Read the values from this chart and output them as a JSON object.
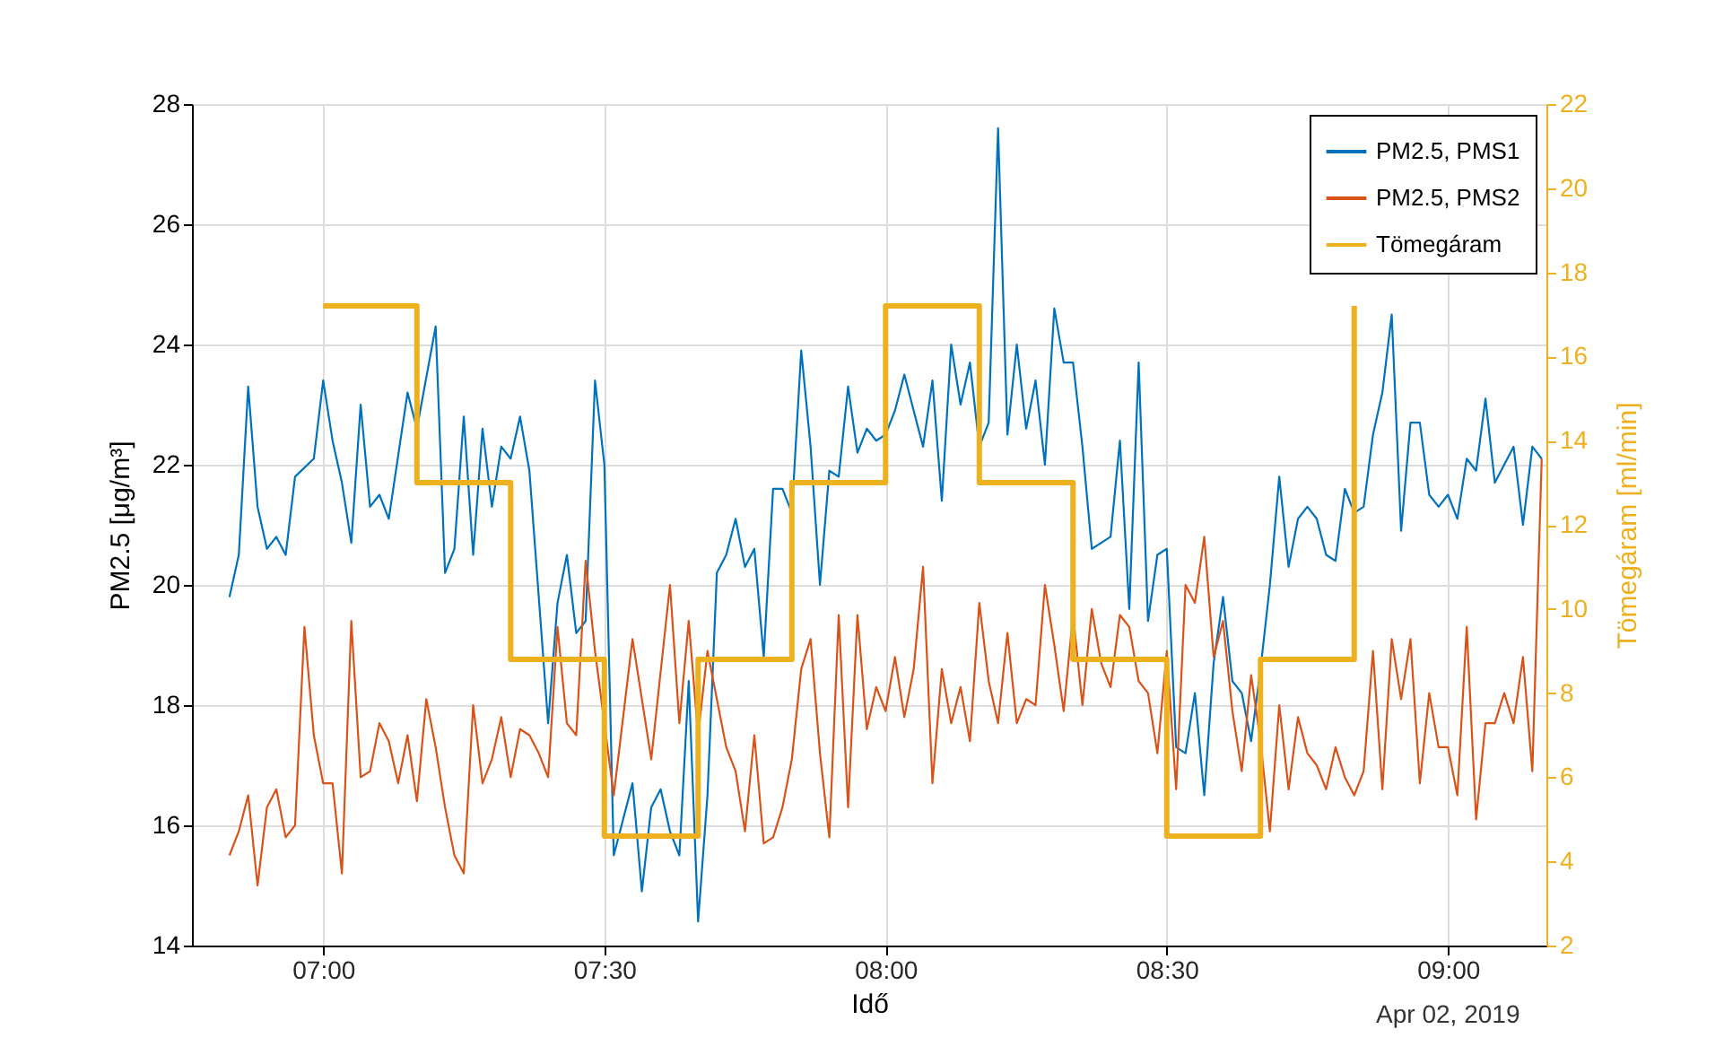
{
  "chart_data": {
    "type": "line",
    "xlabel": "Idő",
    "ylabel": "PM2.5 [μg/m³]",
    "y2label": "Tömegáram [ml/min]",
    "xlim": [
      "2019-04-02T06:46",
      "2019-04-02T09:10:30"
    ],
    "xticks": [
      {
        "value": "2019-04-02T07:00",
        "label": "07:00"
      },
      {
        "value": "2019-04-02T07:30",
        "label": "07:30"
      },
      {
        "value": "2019-04-02T08:00",
        "label": "08:00"
      },
      {
        "value": "2019-04-02T08:30",
        "label": "08:30"
      },
      {
        "value": "2019-04-02T09:00",
        "label": "09:00"
      }
    ],
    "ylim": [
      14,
      28
    ],
    "yticks": [
      14,
      16,
      18,
      20,
      22,
      24,
      26,
      28
    ],
    "y2lim": [
      2,
      22
    ],
    "y2ticks": [
      2,
      4,
      6,
      8,
      10,
      12,
      14,
      16,
      18,
      20,
      22
    ],
    "grid": true,
    "legend": "top right",
    "annotations": [
      "Apr 02, 2019"
    ],
    "series": [
      {
        "name": "PM2.5, PMS1",
        "color": "#0072bd",
        "x": [
          "2019-04-02T06:50",
          "2019-04-02T06:51",
          "2019-04-02T06:52",
          "2019-04-02T06:53",
          "2019-04-02T06:54",
          "2019-04-02T06:55",
          "2019-04-02T06:56",
          "2019-04-02T06:57",
          "2019-04-02T06:59",
          "2019-04-02T07:00",
          "2019-04-02T07:01",
          "2019-04-02T07:02",
          "2019-04-02T07:03",
          "2019-04-02T07:04",
          "2019-04-02T07:05",
          "2019-04-02T07:06",
          "2019-04-02T07:07",
          "2019-04-02T07:09",
          "2019-04-02T07:10",
          "2019-04-02T07:12",
          "2019-04-02T07:13",
          "2019-04-02T07:14",
          "2019-04-02T07:15",
          "2019-04-02T07:16",
          "2019-04-02T07:17",
          "2019-04-02T07:18",
          "2019-04-02T07:19",
          "2019-04-02T07:20",
          "2019-04-02T07:21",
          "2019-04-02T07:22",
          "2019-04-02T07:24",
          "2019-04-02T07:25",
          "2019-04-02T07:26",
          "2019-04-02T07:27",
          "2019-04-02T07:28",
          "2019-04-02T07:29",
          "2019-04-02T07:30",
          "2019-04-02T07:31",
          "2019-04-02T07:33",
          "2019-04-02T07:34",
          "2019-04-02T07:35",
          "2019-04-02T07:36",
          "2019-04-02T07:37",
          "2019-04-02T07:38",
          "2019-04-02T07:39",
          "2019-04-02T07:40",
          "2019-04-02T07:41",
          "2019-04-02T07:42",
          "2019-04-02T07:43",
          "2019-04-02T07:44",
          "2019-04-02T07:45",
          "2019-04-02T07:46",
          "2019-04-02T07:47",
          "2019-04-02T07:48",
          "2019-04-02T07:49",
          "2019-04-02T07:50",
          "2019-04-02T07:51",
          "2019-04-02T07:52",
          "2019-04-02T07:53",
          "2019-04-02T07:54",
          "2019-04-02T07:55",
          "2019-04-02T07:56",
          "2019-04-02T07:57",
          "2019-04-02T07:58",
          "2019-04-02T07:59",
          "2019-04-02T08:00",
          "2019-04-02T08:01",
          "2019-04-02T08:02",
          "2019-04-02T08:03",
          "2019-04-02T08:04",
          "2019-04-02T08:05",
          "2019-04-02T08:06",
          "2019-04-02T08:07",
          "2019-04-02T08:08",
          "2019-04-02T08:09",
          "2019-04-02T08:10",
          "2019-04-02T08:11",
          "2019-04-02T08:12",
          "2019-04-02T08:13",
          "2019-04-02T08:14",
          "2019-04-02T08:15",
          "2019-04-02T08:16",
          "2019-04-02T08:17",
          "2019-04-02T08:18",
          "2019-04-02T08:19",
          "2019-04-02T08:20",
          "2019-04-02T08:21",
          "2019-04-02T08:22",
          "2019-04-02T08:23",
          "2019-04-02T08:24",
          "2019-04-02T08:25",
          "2019-04-02T08:26",
          "2019-04-02T08:27",
          "2019-04-02T08:28",
          "2019-04-02T08:29",
          "2019-04-02T08:30",
          "2019-04-02T08:31",
          "2019-04-02T08:32",
          "2019-04-02T08:33",
          "2019-04-02T08:34",
          "2019-04-02T08:35",
          "2019-04-02T08:36",
          "2019-04-02T08:37",
          "2019-04-02T08:38",
          "2019-04-02T08:39",
          "2019-04-02T08:40",
          "2019-04-02T08:41",
          "2019-04-02T08:42",
          "2019-04-02T08:43",
          "2019-04-02T08:44",
          "2019-04-02T08:45",
          "2019-04-02T08:46",
          "2019-04-02T08:47",
          "2019-04-02T08:48",
          "2019-04-02T08:49",
          "2019-04-02T08:50",
          "2019-04-02T08:51",
          "2019-04-02T08:52",
          "2019-04-02T08:53",
          "2019-04-02T08:54",
          "2019-04-02T08:55",
          "2019-04-02T08:56",
          "2019-04-02T08:57",
          "2019-04-02T08:58",
          "2019-04-02T08:59",
          "2019-04-02T09:00",
          "2019-04-02T09:01",
          "2019-04-02T09:02",
          "2019-04-02T09:03",
          "2019-04-02T09:04",
          "2019-04-02T09:05",
          "2019-04-02T09:06",
          "2019-04-02T09:07",
          "2019-04-02T09:08",
          "2019-04-02T09:09",
          "2019-04-02T09:10"
        ],
        "values": [
          19.8,
          20.5,
          23.3,
          21.3,
          20.6,
          20.8,
          20.5,
          21.8,
          22.1,
          23.4,
          22.4,
          21.7,
          20.7,
          23.0,
          21.3,
          21.5,
          21.1,
          23.2,
          22.6,
          24.3,
          20.2,
          20.6,
          22.8,
          20.5,
          22.6,
          21.3,
          22.3,
          22.1,
          22.8,
          21.9,
          17.7,
          19.7,
          20.5,
          19.2,
          19.4,
          23.4,
          22.0,
          15.5,
          16.7,
          14.9,
          16.3,
          16.6,
          15.9,
          15.5,
          18.4,
          14.4,
          16.5,
          20.2,
          20.5,
          21.1,
          20.3,
          20.6,
          18.8,
          21.6,
          21.6,
          21.2,
          23.9,
          22.3,
          20.0,
          21.9,
          21.8,
          23.3,
          22.2,
          22.6,
          22.4,
          22.5,
          22.9,
          23.5,
          22.9,
          22.3,
          23.4,
          21.4,
          24.0,
          23.0,
          23.7,
          22.3,
          22.7,
          27.6,
          22.5,
          24.0,
          22.6,
          23.4,
          22.0,
          24.6,
          23.7,
          23.7,
          22.3,
          20.6,
          20.7,
          20.8,
          22.4,
          19.6,
          23.7,
          19.4,
          20.5,
          20.6,
          17.3,
          17.2,
          18.2,
          16.5,
          18.7,
          19.8,
          18.4,
          18.2,
          17.4,
          18.6,
          20.0,
          21.8,
          20.3,
          21.1,
          21.3,
          21.1,
          20.5,
          20.4,
          21.6,
          21.2,
          21.3,
          22.5,
          23.2,
          24.5,
          20.9,
          22.7,
          22.7,
          21.5,
          21.3,
          21.5,
          21.1,
          22.1,
          21.9,
          23.1,
          21.7,
          22.0,
          22.3,
          21.0,
          22.3,
          22.1
        ]
      },
      {
        "name": "PM2.5, PMS2",
        "color": "#d95319",
        "x": [
          "2019-04-02T06:50",
          "2019-04-02T06:51",
          "2019-04-02T06:52",
          "2019-04-02T06:53",
          "2019-04-02T06:54",
          "2019-04-02T06:55",
          "2019-04-02T06:56",
          "2019-04-02T06:57",
          "2019-04-02T06:58",
          "2019-04-02T06:59",
          "2019-04-02T07:00",
          "2019-04-02T07:01",
          "2019-04-02T07:02",
          "2019-04-02T07:03",
          "2019-04-02T07:04",
          "2019-04-02T07:05",
          "2019-04-02T07:06",
          "2019-04-02T07:07",
          "2019-04-02T07:08",
          "2019-04-02T07:09",
          "2019-04-02T07:10",
          "2019-04-02T07:11",
          "2019-04-02T07:12",
          "2019-04-02T07:13",
          "2019-04-02T07:14",
          "2019-04-02T07:15",
          "2019-04-02T07:16",
          "2019-04-02T07:17",
          "2019-04-02T07:18",
          "2019-04-02T07:19",
          "2019-04-02T07:20",
          "2019-04-02T07:21",
          "2019-04-02T07:22",
          "2019-04-02T07:23",
          "2019-04-02T07:24",
          "2019-04-02T07:25",
          "2019-04-02T07:26",
          "2019-04-02T07:27",
          "2019-04-02T07:28",
          "2019-04-02T07:29",
          "2019-04-02T07:30",
          "2019-04-02T07:31",
          "2019-04-02T07:33",
          "2019-04-02T07:35",
          "2019-04-02T07:37",
          "2019-04-02T07:38",
          "2019-04-02T07:39",
          "2019-04-02T07:40",
          "2019-04-02T07:41",
          "2019-04-02T07:42",
          "2019-04-02T07:43",
          "2019-04-02T07:44",
          "2019-04-02T07:45",
          "2019-04-02T07:46",
          "2019-04-02T07:47",
          "2019-04-02T07:48",
          "2019-04-02T07:49",
          "2019-04-02T07:50",
          "2019-04-02T07:51",
          "2019-04-02T07:52",
          "2019-04-02T07:53",
          "2019-04-02T07:54",
          "2019-04-02T07:55",
          "2019-04-02T07:56",
          "2019-04-02T07:57",
          "2019-04-02T07:58",
          "2019-04-02T07:59",
          "2019-04-02T08:00",
          "2019-04-02T08:01",
          "2019-04-02T08:02",
          "2019-04-02T08:03",
          "2019-04-02T08:04",
          "2019-04-02T08:05",
          "2019-04-02T08:06",
          "2019-04-02T08:07",
          "2019-04-02T08:08",
          "2019-04-02T08:09",
          "2019-04-02T08:10",
          "2019-04-02T08:11",
          "2019-04-02T08:12",
          "2019-04-02T08:13",
          "2019-04-02T08:14",
          "2019-04-02T08:15",
          "2019-04-02T08:16",
          "2019-04-02T08:17",
          "2019-04-02T08:18",
          "2019-04-02T08:19",
          "2019-04-02T08:20",
          "2019-04-02T08:21",
          "2019-04-02T08:22",
          "2019-04-02T08:23",
          "2019-04-02T08:24",
          "2019-04-02T08:25",
          "2019-04-02T08:26",
          "2019-04-02T08:27",
          "2019-04-02T08:28",
          "2019-04-02T08:29",
          "2019-04-02T08:30",
          "2019-04-02T08:31",
          "2019-04-02T08:32",
          "2019-04-02T08:33",
          "2019-04-02T08:34",
          "2019-04-02T08:35",
          "2019-04-02T08:36",
          "2019-04-02T08:37",
          "2019-04-02T08:38",
          "2019-04-02T08:39",
          "2019-04-02T08:40",
          "2019-04-02T08:41",
          "2019-04-02T08:42",
          "2019-04-02T08:43",
          "2019-04-02T08:44",
          "2019-04-02T08:45",
          "2019-04-02T08:46",
          "2019-04-02T08:47",
          "2019-04-02T08:48",
          "2019-04-02T08:49",
          "2019-04-02T08:50",
          "2019-04-02T08:51",
          "2019-04-02T08:52",
          "2019-04-02T08:53",
          "2019-04-02T08:54",
          "2019-04-02T08:55",
          "2019-04-02T08:56",
          "2019-04-02T08:57",
          "2019-04-02T08:58",
          "2019-04-02T08:59",
          "2019-04-02T09:00",
          "2019-04-02T09:01",
          "2019-04-02T09:02",
          "2019-04-02T09:03",
          "2019-04-02T09:04",
          "2019-04-02T09:05",
          "2019-04-02T09:06",
          "2019-04-02T09:07",
          "2019-04-02T09:08",
          "2019-04-02T09:09",
          "2019-04-02T09:10"
        ],
        "values": [
          15.5,
          15.9,
          16.5,
          15.0,
          16.3,
          16.6,
          15.8,
          16.0,
          19.3,
          17.5,
          16.7,
          16.7,
          15.2,
          19.4,
          16.8,
          16.9,
          17.7,
          17.4,
          16.7,
          17.5,
          16.4,
          18.1,
          17.3,
          16.3,
          15.5,
          15.2,
          18.0,
          16.7,
          17.1,
          17.8,
          16.8,
          17.6,
          17.5,
          17.2,
          16.8,
          19.3,
          17.7,
          17.5,
          20.4,
          18.9,
          17.7,
          16.5,
          19.1,
          17.1,
          20.0,
          17.7,
          19.4,
          17.5,
          18.9,
          18.1,
          17.3,
          16.9,
          15.9,
          17.5,
          15.7,
          15.8,
          16.3,
          17.1,
          18.6,
          19.1,
          17.2,
          15.8,
          19.5,
          16.3,
          19.5,
          17.6,
          18.3,
          17.9,
          18.8,
          17.8,
          18.6,
          20.3,
          16.7,
          18.6,
          17.7,
          18.3,
          17.4,
          19.7,
          18.4,
          17.7,
          19.2,
          17.7,
          18.1,
          18.0,
          20.0,
          19.0,
          17.9,
          19.5,
          18.0,
          19.6,
          18.7,
          18.3,
          19.5,
          19.3,
          18.4,
          18.2,
          17.2,
          18.9,
          16.6,
          20.0,
          19.7,
          20.8,
          18.8,
          19.4,
          17.9,
          16.9,
          18.5,
          17.4,
          15.9,
          18.0,
          16.6,
          17.8,
          17.2,
          17.0,
          16.6,
          17.3,
          16.8,
          16.5,
          16.9,
          18.9,
          16.6,
          19.1,
          18.1,
          19.1,
          16.7,
          18.2,
          17.3,
          17.3,
          16.5,
          19.3,
          16.1,
          17.7,
          17.7,
          18.2,
          17.7,
          18.8,
          16.9,
          22.1
        ]
      },
      {
        "name": "Tömegáram",
        "color": "#edb120",
        "type": "step",
        "axis": "y2",
        "x": [
          "2019-04-02T07:00",
          "2019-04-02T07:10",
          "2019-04-02T07:20",
          "2019-04-02T07:30",
          "2019-04-02T07:40",
          "2019-04-02T07:50",
          "2019-04-02T08:00",
          "2019-04-02T08:10",
          "2019-04-02T08:20",
          "2019-04-02T08:30",
          "2019-04-02T08:40",
          "2019-04-02T08:50"
        ],
        "values": [
          17.2,
          13.0,
          8.8,
          4.6,
          8.8,
          13.0,
          17.2,
          13.0,
          8.8,
          4.6,
          8.8,
          17.2
        ]
      }
    ]
  }
}
